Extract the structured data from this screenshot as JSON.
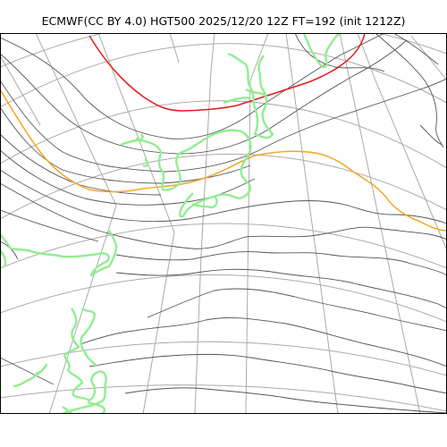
{
  "title": "ECMWF(CC BY 4.0) HGT500 2025/12/20 12Z FT=192 (init 1212Z)",
  "colors": {
    "contour": "#555555",
    "contour_highlight_red": "#e31a1c",
    "contour_highlight_orange": "#f5a623",
    "coastline": "#90ee90",
    "graticule": "#aaaaaa",
    "frame": "#000000"
  }
}
